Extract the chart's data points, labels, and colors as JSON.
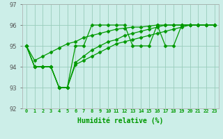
{
  "xlabel": "Humidité relative (%)",
  "bg_color": "#cceee8",
  "grid_color": "#99ccbb",
  "line_color": "#009900",
  "ylim": [
    92,
    97
  ],
  "xlim": [
    -0.5,
    23.5
  ],
  "yticks": [
    92,
    93,
    94,
    95,
    96,
    97
  ],
  "xtick_labels": [
    "0",
    "1",
    "2",
    "3",
    "4",
    "5",
    "6",
    "7",
    "8",
    "9",
    "10",
    "11",
    "12",
    "13",
    "14",
    "15",
    "16",
    "17",
    "18",
    "19",
    "20",
    "21",
    "22",
    "23"
  ],
  "line1": [
    95,
    94,
    94,
    94,
    93,
    93,
    95,
    95,
    96,
    96,
    96,
    96,
    96,
    95,
    95,
    95,
    96,
    95,
    95,
    96,
    96,
    96,
    96,
    96
  ],
  "line2": [
    95,
    94,
    94,
    94,
    93,
    93,
    94.2,
    94.5,
    94.8,
    95.0,
    95.2,
    95.3,
    95.5,
    95.6,
    95.7,
    95.8,
    95.9,
    96.0,
    96.0,
    96.0,
    96.0,
    96.0,
    96.0,
    96.0
  ],
  "line3": [
    95,
    94,
    94,
    94,
    93,
    93,
    94.1,
    94.3,
    94.5,
    94.7,
    94.9,
    95.1,
    95.2,
    95.3,
    95.4,
    95.5,
    95.6,
    95.7,
    95.8,
    95.9,
    96.0,
    96.0,
    96.0,
    96.0
  ],
  "line4": [
    95,
    94.3,
    94.5,
    94.7,
    94.9,
    95.1,
    95.2,
    95.4,
    95.5,
    95.6,
    95.7,
    95.8,
    95.85,
    95.9,
    95.9,
    95.95,
    96.0,
    96.0,
    96.0,
    96.0,
    96.0,
    96.0,
    96.0,
    96.0
  ]
}
